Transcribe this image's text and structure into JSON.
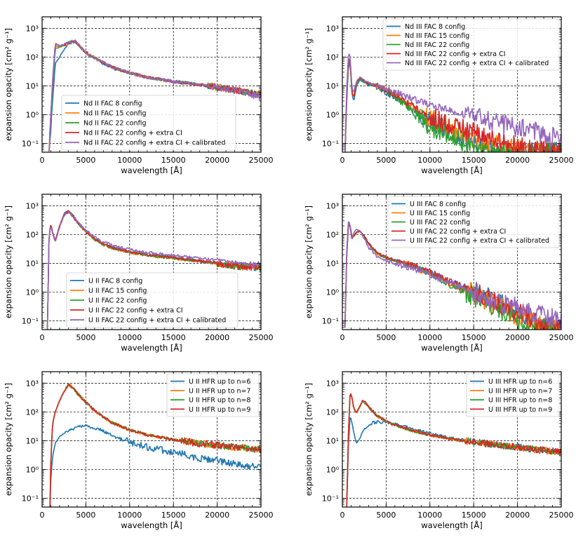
{
  "chart_data": [
    {
      "type": "line",
      "xlabel": "wavelength [Å]",
      "ylabel": "expansion opacity [cm² g⁻¹]",
      "xlim": [
        0,
        25000
      ],
      "ylim": [
        0.05,
        2500
      ],
      "yscale": "log",
      "grid": true,
      "legend_position": "lower-right",
      "x_ticks": [
        "0",
        "5000",
        "10000",
        "15000",
        "20000",
        "25000"
      ],
      "y_ticks": [
        "10⁻¹",
        "10⁰",
        "10¹",
        "10²",
        "10³"
      ],
      "x": [
        800,
        1000,
        1200,
        1500,
        2000,
        2500,
        3000,
        3500,
        3800,
        4200,
        5000,
        6000,
        7000,
        8000,
        10000,
        12000,
        15000,
        18000,
        20000,
        22000,
        25000
      ],
      "series": [
        {
          "name": "Nd II FAC 8 config",
          "color": "#1f77b4",
          "values": [
            0.05,
            0.3,
            3,
            60,
            100,
            180,
            300,
            330,
            350,
            260,
            140,
            90,
            60,
            42,
            28,
            20,
            15,
            11,
            9,
            7,
            5
          ]
        },
        {
          "name": "Nd II FAC 15 config",
          "color": "#ff7f0e",
          "values": [
            0.05,
            0.8,
            10,
            250,
            220,
            260,
            300,
            340,
            340,
            250,
            140,
            95,
            65,
            45,
            28,
            20,
            14,
            11,
            9,
            7,
            5
          ]
        },
        {
          "name": "Nd II FAC 22 config",
          "color": "#2ca02c",
          "values": [
            0.05,
            0.6,
            8,
            200,
            220,
            260,
            310,
            350,
            350,
            250,
            140,
            95,
            65,
            45,
            28,
            20,
            14,
            11,
            9,
            7,
            5
          ]
        },
        {
          "name": "Nd II FAC 22 config + extra CI",
          "color": "#d62728",
          "values": [
            0.05,
            1.2,
            15,
            300,
            250,
            270,
            320,
            360,
            360,
            260,
            145,
            95,
            65,
            45,
            28,
            20,
            14,
            11,
            9,
            7,
            5
          ]
        },
        {
          "name": "Nd II FAC 22 config + extra CI + calibrated",
          "color": "#9467bd",
          "values": [
            0.05,
            1.0,
            12,
            280,
            240,
            270,
            310,
            350,
            350,
            255,
            140,
            95,
            65,
            45,
            28,
            20,
            14,
            11,
            9,
            7,
            4
          ]
        }
      ]
    },
    {
      "type": "line",
      "xlabel": "wavelength [Å]",
      "ylabel": "expansion opacity [cm² g⁻¹]",
      "xlim": [
        0,
        25000
      ],
      "ylim": [
        0.05,
        2500
      ],
      "yscale": "log",
      "grid": true,
      "legend_position": "top-right",
      "x_ticks": [
        "0",
        "5000",
        "10000",
        "15000",
        "20000",
        "25000"
      ],
      "y_ticks": [
        "10⁻¹",
        "10⁰",
        "10¹",
        "10²",
        "10³"
      ],
      "x": [
        300,
        500,
        700,
        900,
        1100,
        1300,
        1600,
        2000,
        2500,
        3000,
        4000,
        5000,
        6000,
        7000,
        8000,
        9000,
        10000,
        12000,
        14000,
        16000,
        18000,
        20000,
        22000,
        25000
      ],
      "series": [
        {
          "name": "Nd III FAC 8 config",
          "color": "#1f77b4",
          "values": [
            0.05,
            3,
            50,
            60,
            5,
            3,
            10,
            16,
            13,
            11,
            9,
            6,
            4,
            2.5,
            1.5,
            0.9,
            0.6,
            0.3,
            0.15,
            0.08,
            0.05,
            0.05,
            0.05,
            0.05
          ]
        },
        {
          "name": "Nd III FAC 15 config",
          "color": "#ff7f0e",
          "values": [
            0.05,
            5,
            80,
            70,
            6,
            4,
            12,
            18,
            14,
            12,
            10,
            7,
            4.5,
            3,
            2,
            1.2,
            0.8,
            0.4,
            0.2,
            0.12,
            0.08,
            0.06,
            0.05,
            0.05
          ]
        },
        {
          "name": "Nd III FAC 22 config",
          "color": "#2ca02c",
          "values": [
            0.05,
            4,
            70,
            65,
            5,
            4,
            11,
            17,
            14,
            12,
            10,
            7,
            4.5,
            2.5,
            1.2,
            0.7,
            0.4,
            0.2,
            0.1,
            0.06,
            0.05,
            0.05,
            0.05,
            0.05
          ]
        },
        {
          "name": "Nd III FAC 22 config + extra CI",
          "color": "#d62728",
          "values": [
            0.05,
            5,
            90,
            80,
            6,
            4,
            13,
            19,
            15,
            12,
            10,
            7,
            5,
            3,
            2,
            1.3,
            0.9,
            0.5,
            0.3,
            0.2,
            0.12,
            0.08,
            0.06,
            0.05
          ]
        },
        {
          "name": "Nd III FAC 22 config + extra CI + calibrated",
          "color": "#9467bd",
          "values": [
            0.05,
            8,
            140,
            100,
            8,
            6,
            14,
            20,
            16,
            13,
            11,
            8,
            6,
            4.5,
            3.5,
            2.8,
            2.2,
            1.5,
            1.0,
            0.7,
            0.5,
            0.35,
            0.25,
            0.15
          ]
        }
      ]
    },
    {
      "type": "line",
      "xlabel": "wavelength [Å]",
      "ylabel": "expansion opacity [cm² g⁻¹]",
      "xlim": [
        0,
        25000
      ],
      "ylim": [
        0.05,
        2500
      ],
      "yscale": "log",
      "grid": true,
      "legend_position": "lower-right",
      "x_ticks": [
        "0",
        "5000",
        "10000",
        "15000",
        "20000",
        "25000"
      ],
      "y_ticks": [
        "10⁻¹",
        "10⁰",
        "10¹",
        "10²",
        "10³"
      ],
      "x": [
        600,
        800,
        1000,
        1200,
        1500,
        2000,
        2500,
        3000,
        3500,
        4000,
        5000,
        6000,
        7000,
        8000,
        10000,
        12000,
        15000,
        18000,
        20000,
        22000,
        25000
      ],
      "series": [
        {
          "name": "U II FAC 8 config",
          "color": "#1f77b4",
          "values": [
            0.05,
            100,
            220,
            120,
            60,
            200,
            500,
            650,
            450,
            280,
            130,
            70,
            45,
            35,
            25,
            20,
            16,
            12,
            10,
            8,
            7
          ]
        },
        {
          "name": "U II FAC 15 config",
          "color": "#ff7f0e",
          "values": [
            0.05,
            90,
            210,
            110,
            55,
            190,
            480,
            630,
            440,
            270,
            125,
            68,
            44,
            34,
            24,
            19,
            15,
            12,
            10,
            8,
            7
          ]
        },
        {
          "name": "U II FAC 22 config",
          "color": "#2ca02c",
          "values": [
            0.05,
            95,
            215,
            115,
            58,
            195,
            490,
            640,
            445,
            275,
            128,
            70,
            45,
            35,
            25,
            19,
            15,
            12,
            10,
            8,
            7
          ]
        },
        {
          "name": "U II FAC 22 config + extra CI",
          "color": "#d62728",
          "values": [
            0.05,
            100,
            230,
            120,
            60,
            200,
            500,
            650,
            450,
            280,
            130,
            70,
            45,
            35,
            25,
            20,
            16,
            12,
            10,
            8,
            7
          ]
        },
        {
          "name": "U II FAC 22 config + extra CI + calibrated",
          "color": "#9467bd",
          "values": [
            0.05,
            90,
            200,
            110,
            55,
            180,
            450,
            600,
            430,
            280,
            140,
            80,
            55,
            42,
            30,
            24,
            19,
            15,
            13,
            11,
            9
          ]
        }
      ]
    },
    {
      "type": "line",
      "xlabel": "wavelength [Å]",
      "ylabel": "expansion opacity [cm² g⁻¹]",
      "xlim": [
        0,
        25000
      ],
      "ylim": [
        0.05,
        2500
      ],
      "yscale": "log",
      "grid": true,
      "legend_position": "top-right",
      "x_ticks": [
        "0",
        "5000",
        "10000",
        "15000",
        "20000",
        "25000"
      ],
      "y_ticks": [
        "10⁻¹",
        "10⁰",
        "10¹",
        "10²",
        "10³"
      ],
      "x": [
        300,
        500,
        700,
        900,
        1100,
        1300,
        1600,
        2000,
        2500,
        3000,
        4000,
        5000,
        6000,
        7000,
        8000,
        9000,
        10000,
        12000,
        14000,
        16000,
        18000,
        20000,
        22000,
        25000
      ],
      "series": [
        {
          "name": "U III FAC 8 config",
          "color": "#1f77b4",
          "values": [
            0.05,
            20,
            250,
            200,
            80,
            90,
            120,
            130,
            90,
            50,
            22,
            16,
            13,
            11,
            9,
            7,
            5,
            2.5,
            1.5,
            0.8,
            0.4,
            0.2,
            0.1,
            0.05
          ]
        },
        {
          "name": "U III FAC 15 config",
          "color": "#ff7f0e",
          "values": [
            0.05,
            18,
            230,
            190,
            75,
            85,
            115,
            125,
            85,
            48,
            21,
            15,
            12,
            10,
            8,
            6,
            4.5,
            2.2,
            1.2,
            0.6,
            0.3,
            0.15,
            0.08,
            0.05
          ]
        },
        {
          "name": "U III FAC 22 config",
          "color": "#2ca02c",
          "values": [
            0.05,
            19,
            240,
            195,
            78,
            88,
            118,
            128,
            88,
            49,
            22,
            15,
            12,
            10,
            8,
            6,
            4.5,
            2,
            1,
            0.5,
            0.25,
            0.12,
            0.06,
            0.05
          ]
        },
        {
          "name": "U III FAC 22 config + extra CI",
          "color": "#d62728",
          "values": [
            0.05,
            20,
            250,
            200,
            80,
            90,
            120,
            130,
            90,
            50,
            22,
            16,
            13,
            11,
            9,
            7,
            5,
            2.5,
            1.5,
            0.8,
            0.4,
            0.2,
            0.1,
            0.05
          ]
        },
        {
          "name": "U III FAC 22 config + extra CI + calibrated",
          "color": "#9467bd",
          "values": [
            0.05,
            30,
            350,
            180,
            60,
            120,
            150,
            140,
            70,
            35,
            17,
            12,
            10,
            8.5,
            7,
            5.5,
            4,
            2.2,
            1.3,
            0.7,
            0.4,
            0.3,
            0.2,
            0.1
          ]
        }
      ]
    },
    {
      "type": "line",
      "xlabel": "wavelength [Å]",
      "ylabel": "expansion opacity [cm² g⁻¹]",
      "xlim": [
        0,
        25000
      ],
      "ylim": [
        0.05,
        2500
      ],
      "yscale": "log",
      "grid": true,
      "legend_position": "top-right",
      "x_ticks": [
        "0",
        "5000",
        "10000",
        "15000",
        "20000",
        "25000"
      ],
      "y_ticks": [
        "10⁻¹",
        "10⁰",
        "10¹",
        "10²",
        "10³"
      ],
      "x": [
        900,
        1000,
        1200,
        1500,
        2000,
        2500,
        3000,
        3500,
        4000,
        5000,
        6000,
        7000,
        8000,
        10000,
        12000,
        15000,
        18000,
        20000,
        22000,
        25000
      ],
      "series": [
        {
          "name": "U II HFR up to n=6",
          "color": "#1f77b4",
          "values": [
            0.05,
            0.5,
            3,
            8,
            14,
            18,
            22,
            26,
            30,
            33,
            28,
            22,
            15,
            9,
            6,
            4,
            2.5,
            2,
            1.6,
            1.2
          ]
        },
        {
          "name": "U II HFR up to n=7",
          "color": "#ff7f0e",
          "values": [
            0.05,
            2,
            40,
            100,
            250,
            500,
            900,
            700,
            450,
            220,
            110,
            65,
            42,
            24,
            16,
            11,
            8,
            7,
            6,
            5
          ]
        },
        {
          "name": "U II HFR up to n=8",
          "color": "#2ca02c",
          "values": [
            0.05,
            2,
            40,
            100,
            250,
            500,
            900,
            700,
            450,
            220,
            110,
            65,
            42,
            24,
            16,
            11,
            8,
            7,
            6,
            5
          ]
        },
        {
          "name": "U II HFR up to n=9",
          "color": "#d62728",
          "values": [
            0.05,
            2,
            40,
            100,
            250,
            500,
            900,
            700,
            450,
            220,
            110,
            65,
            42,
            24,
            16,
            11,
            8,
            7,
            6,
            5
          ]
        }
      ]
    },
    {
      "type": "line",
      "xlabel": "wavelength [Å]",
      "ylabel": "expansion opacity [cm² g⁻¹]",
      "xlim": [
        0,
        25000
      ],
      "ylim": [
        0.05,
        2500
      ],
      "yscale": "log",
      "grid": true,
      "legend_position": "top-right",
      "x_ticks": [
        "0",
        "5000",
        "10000",
        "15000",
        "20000",
        "25000"
      ],
      "y_ticks": [
        "10⁻¹",
        "10⁰",
        "10¹",
        "10²",
        "10³"
      ],
      "x": [
        500,
        700,
        900,
        1100,
        1300,
        1600,
        2000,
        2300,
        2600,
        3000,
        3500,
        4000,
        5000,
        6000,
        7000,
        8000,
        10000,
        12000,
        15000,
        18000,
        20000,
        22000,
        25000
      ],
      "series": [
        {
          "name": "U III HFR up to n=6",
          "color": "#1f77b4",
          "values": [
            0.05,
            8,
            80,
            40,
            20,
            8,
            12,
            20,
            28,
            35,
            42,
            45,
            44,
            38,
            32,
            26,
            18,
            13,
            9,
            7,
            6,
            5,
            4
          ]
        },
        {
          "name": "U III HFR up to n=7",
          "color": "#ff7f0e",
          "values": [
            0.05,
            20,
            480,
            300,
            130,
            90,
            150,
            240,
            200,
            150,
            100,
            70,
            45,
            35,
            28,
            22,
            16,
            12,
            9,
            7,
            6,
            5,
            4
          ]
        },
        {
          "name": "U III HFR up to n=8",
          "color": "#2ca02c",
          "values": [
            0.05,
            22,
            500,
            310,
            135,
            92,
            155,
            245,
            205,
            152,
            102,
            72,
            46,
            35,
            28,
            22,
            16,
            12,
            9,
            7,
            6,
            5,
            4
          ]
        },
        {
          "name": "U III HFR up to n=9",
          "color": "#d62728",
          "values": [
            0.05,
            25,
            520,
            320,
            140,
            95,
            160,
            250,
            210,
            155,
            105,
            73,
            47,
            36,
            29,
            23,
            16,
            12,
            9,
            7,
            6,
            5,
            4
          ]
        }
      ]
    }
  ]
}
